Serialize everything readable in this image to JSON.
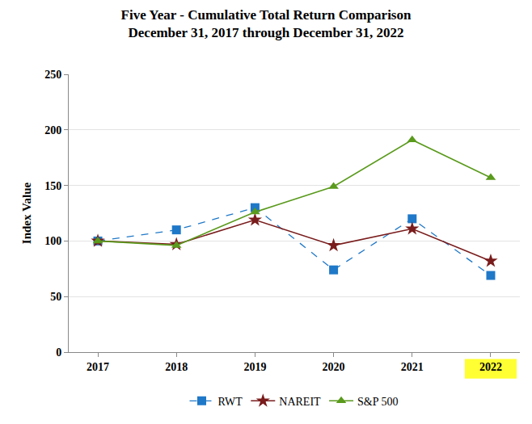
{
  "chart_data": {
    "type": "line",
    "title": "Five Year - Cumulative Total Return Comparison",
    "subtitle": "December 31, 2017 through December 31, 2022",
    "y_label": "Index Value",
    "categories": [
      "2017",
      "2018",
      "2019",
      "2020",
      "2021",
      "2022"
    ],
    "series": [
      {
        "name": "RWT",
        "color": "#1f78c8",
        "marker": "square",
        "line_style": "dash",
        "values": [
          100,
          110,
          130,
          74,
          120,
          69
        ]
      },
      {
        "name": "NAREIT",
        "color": "#7a1c1c",
        "marker": "star",
        "line_style": "solid",
        "values": [
          100,
          97,
          119,
          96,
          111,
          82
        ]
      },
      {
        "name": "S&P 500",
        "color": "#5a9a1c",
        "marker": "triangle",
        "line_style": "solid",
        "values": [
          100,
          96,
          126,
          149,
          191,
          157
        ]
      }
    ],
    "ylim": [
      0,
      250
    ],
    "yticks": [
      0,
      50,
      100,
      150,
      200,
      250
    ],
    "grid": true,
    "legend": "bottom"
  }
}
